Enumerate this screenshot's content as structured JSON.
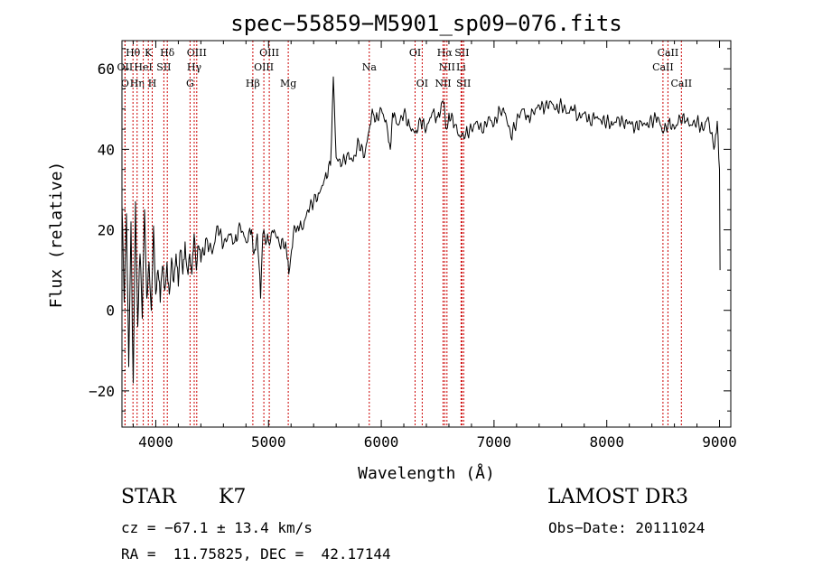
{
  "chart_data": {
    "type": "line",
    "title": "spec−55859−M5901_sp09−076.fits",
    "xlabel": "Wavelength (Å)",
    "ylabel": "Flux (relative)",
    "xlim": [
      3700,
      9100
    ],
    "ylim": [
      -29,
      67
    ],
    "x_ticks": [
      4000,
      5000,
      6000,
      7000,
      8000,
      9000
    ],
    "y_ticks": [
      -20,
      0,
      20,
      40,
      60
    ],
    "x_tick_labels": [
      "4000",
      "5000",
      "6000",
      "7000",
      "8000",
      "9000"
    ],
    "y_tick_labels": [
      "−20",
      "0",
      "20",
      "40",
      "60"
    ],
    "series": [
      {
        "name": "flux",
        "color": "#000000",
        "points": [
          [
            3700,
            26
          ],
          [
            3720,
            2
          ],
          [
            3740,
            24
          ],
          [
            3760,
            -14
          ],
          [
            3780,
            22
          ],
          [
            3800,
            -18
          ],
          [
            3820,
            27
          ],
          [
            3840,
            -4
          ],
          [
            3860,
            14
          ],
          [
            3880,
            -2
          ],
          [
            3900,
            25
          ],
          [
            3920,
            3
          ],
          [
            3940,
            12
          ],
          [
            3960,
            0
          ],
          [
            3980,
            21
          ],
          [
            4000,
            4
          ],
          [
            4020,
            10
          ],
          [
            4040,
            2
          ],
          [
            4060,
            11
          ],
          [
            4080,
            5
          ],
          [
            4100,
            12
          ],
          [
            4120,
            4
          ],
          [
            4140,
            13
          ],
          [
            4160,
            7
          ],
          [
            4180,
            14
          ],
          [
            4200,
            6
          ],
          [
            4220,
            15
          ],
          [
            4240,
            9
          ],
          [
            4260,
            17
          ],
          [
            4280,
            10
          ],
          [
            4300,
            14
          ],
          [
            4320,
            9
          ],
          [
            4340,
            19
          ],
          [
            4360,
            10
          ],
          [
            4380,
            16
          ],
          [
            4400,
            12
          ],
          [
            4450,
            18
          ],
          [
            4500,
            14
          ],
          [
            4550,
            21
          ],
          [
            4600,
            16
          ],
          [
            4650,
            19
          ],
          [
            4700,
            17
          ],
          [
            4750,
            21
          ],
          [
            4800,
            17
          ],
          [
            4850,
            20
          ],
          [
            4870,
            14
          ],
          [
            4900,
            19
          ],
          [
            4930,
            3
          ],
          [
            4950,
            19
          ],
          [
            5000,
            17
          ],
          [
            5050,
            20
          ],
          [
            5100,
            16
          ],
          [
            5150,
            17
          ],
          [
            5180,
            9
          ],
          [
            5220,
            19
          ],
          [
            5260,
            21
          ],
          [
            5300,
            20
          ],
          [
            5350,
            25
          ],
          [
            5400,
            27
          ],
          [
            5450,
            29
          ],
          [
            5500,
            33
          ],
          [
            5550,
            36
          ],
          [
            5575,
            58
          ],
          [
            5600,
            38
          ],
          [
            5650,
            36
          ],
          [
            5700,
            39
          ],
          [
            5750,
            37
          ],
          [
            5800,
            42
          ],
          [
            5850,
            38
          ],
          [
            5900,
            46
          ],
          [
            5920,
            50
          ],
          [
            5950,
            47
          ],
          [
            6000,
            50
          ],
          [
            6050,
            46
          ],
          [
            6080,
            40
          ],
          [
            6100,
            49
          ],
          [
            6150,
            46
          ],
          [
            6200,
            49
          ],
          [
            6250,
            46
          ],
          [
            6300,
            44
          ],
          [
            6350,
            47
          ],
          [
            6400,
            45
          ],
          [
            6450,
            49
          ],
          [
            6500,
            48
          ],
          [
            6550,
            52
          ],
          [
            6580,
            45
          ],
          [
            6600,
            49
          ],
          [
            6650,
            46
          ],
          [
            6700,
            43
          ],
          [
            6750,
            44
          ],
          [
            6800,
            45
          ],
          [
            6850,
            47
          ],
          [
            6900,
            44
          ],
          [
            6950,
            48
          ],
          [
            7000,
            46
          ],
          [
            7050,
            50
          ],
          [
            7100,
            49
          ],
          [
            7150,
            43
          ],
          [
            7200,
            47
          ],
          [
            7250,
            50
          ],
          [
            7300,
            48
          ],
          [
            7350,
            49
          ],
          [
            7400,
            51
          ],
          [
            7450,
            50
          ],
          [
            7500,
            52
          ],
          [
            7550,
            50
          ],
          [
            7600,
            51
          ],
          [
            7650,
            49
          ],
          [
            7700,
            50
          ],
          [
            7750,
            48
          ],
          [
            7800,
            49
          ],
          [
            7850,
            47
          ],
          [
            7900,
            48
          ],
          [
            7950,
            47
          ],
          [
            8000,
            47
          ],
          [
            8050,
            46
          ],
          [
            8100,
            48
          ],
          [
            8150,
            46
          ],
          [
            8200,
            47
          ],
          [
            8250,
            45
          ],
          [
            8300,
            47
          ],
          [
            8350,
            46
          ],
          [
            8400,
            47
          ],
          [
            8450,
            48
          ],
          [
            8500,
            44
          ],
          [
            8550,
            47
          ],
          [
            8600,
            45
          ],
          [
            8650,
            48
          ],
          [
            8700,
            47
          ],
          [
            8750,
            46
          ],
          [
            8800,
            47
          ],
          [
            8850,
            45
          ],
          [
            8900,
            48
          ],
          [
            8950,
            40
          ],
          [
            8980,
            47
          ],
          [
            9000,
            35
          ],
          [
            9005,
            10
          ]
        ]
      }
    ],
    "lines": [
      {
        "label": "Hθ",
        "wavelength": 3798,
        "row": 0
      },
      {
        "label": "OII",
        "wavelength": 3727,
        "row": 1
      },
      {
        "label": "O",
        "wavelength": 3727,
        "row": 2
      },
      {
        "label": "Hη",
        "wavelength": 3835,
        "row": 2
      },
      {
        "label": "HeI",
        "wavelength": 3889,
        "row": 1
      },
      {
        "label": "K",
        "wavelength": 3934,
        "row": 0
      },
      {
        "label": "H",
        "wavelength": 3968,
        "row": 2
      },
      {
        "label": "SII",
        "wavelength": 4072,
        "row": 1
      },
      {
        "label": "Hδ",
        "wavelength": 4102,
        "row": 0
      },
      {
        "label": "OIII",
        "wavelength": 4363,
        "row": 0
      },
      {
        "label": "Hγ",
        "wavelength": 4341,
        "row": 1
      },
      {
        "label": "G",
        "wavelength": 4304,
        "row": 2
      },
      {
        "label": "Hβ",
        "wavelength": 4861,
        "row": 2
      },
      {
        "label": "OIII",
        "wavelength": 5007,
        "row": 0
      },
      {
        "label": "OIII",
        "wavelength": 4959,
        "row": 1
      },
      {
        "label": "Mg",
        "wavelength": 5175,
        "row": 2
      },
      {
        "label": "Na",
        "wavelength": 5894,
        "row": 1
      },
      {
        "label": "OI",
        "wavelength": 6300,
        "row": 0
      },
      {
        "label": "OI",
        "wavelength": 6363,
        "row": 2
      },
      {
        "label": "Hα",
        "wavelength": 6563,
        "row": 0
      },
      {
        "label": "NII",
        "wavelength": 6583,
        "row": 1
      },
      {
        "label": "NII",
        "wavelength": 6548,
        "row": 2
      },
      {
        "label": "SII",
        "wavelength": 6716,
        "row": 0
      },
      {
        "label": "Li",
        "wavelength": 6708,
        "row": 1
      },
      {
        "label": "SII",
        "wavelength": 6731,
        "row": 2
      },
      {
        "label": "CaII",
        "wavelength": 8542,
        "row": 0
      },
      {
        "label": "CaII",
        "wavelength": 8498,
        "row": 1
      },
      {
        "label": "CaII",
        "wavelength": 8662,
        "row": 2
      }
    ],
    "line_color": "#cc0000"
  },
  "info": {
    "class_label": "STAR",
    "subclass": "K7",
    "survey": "LAMOST DR3",
    "cz": "cz = −67.1 ± 13.4 km/s",
    "obs_date": "Obs−Date: 20111024",
    "coords": "RA =  11.75825, DEC =  42.17144"
  }
}
